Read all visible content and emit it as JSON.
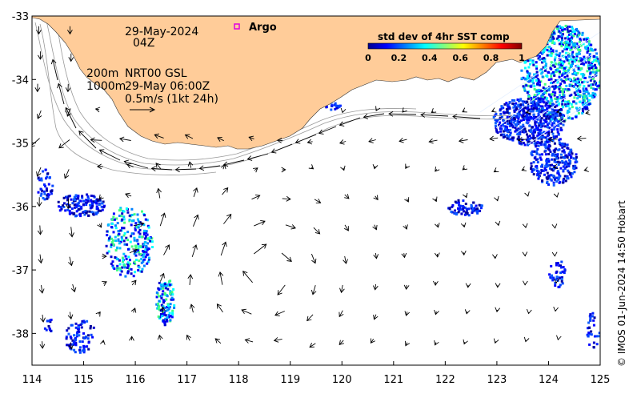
{
  "map": {
    "date_line": "29-May-2024",
    "time_line": "04Z",
    "depth_200": "200m",
    "depth_1000": "1000m",
    "product": "NRT00 GSL",
    "product_time": "29-May 06:00Z",
    "scale_label": "0.5m/s (1kt 24h)",
    "legend_argo": "Argo",
    "credit": "© IMOS 01-Jun-2024 14:50 Hobart",
    "colors": {
      "land": "#FFCC99",
      "ocean": "#ffffff",
      "argo_marker": "#E000E0",
      "arrow": "#000000",
      "contour": "#999999"
    }
  },
  "colorbar": {
    "title": "std dev of 4hr SST comp",
    "ticks": [
      "0",
      "0.2",
      "0.4",
      "0.6",
      "0.8",
      "1"
    ]
  },
  "axes": {
    "x_ticks": [
      "114",
      "115",
      "116",
      "117",
      "118",
      "119",
      "120",
      "121",
      "122",
      "123",
      "124",
      "125"
    ],
    "y_ticks": [
      "-33",
      "-34",
      "-35",
      "-36",
      "-37",
      "-38"
    ],
    "x_range": [
      114,
      125
    ],
    "y_range": [
      -38.5,
      -33
    ]
  }
}
